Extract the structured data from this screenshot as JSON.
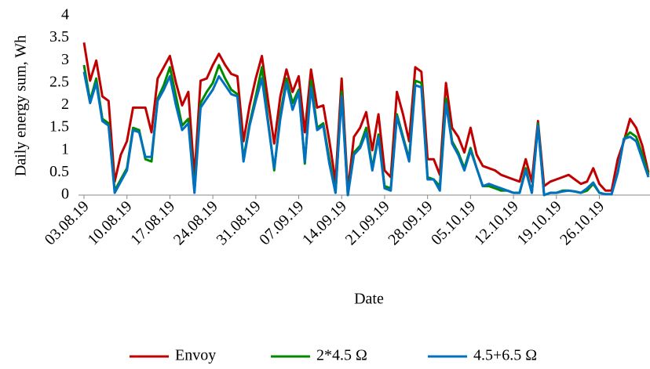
{
  "chart_data": {
    "type": "line",
    "y_label": "Daily energy sum, Wh",
    "x_label": "Date",
    "categories": [
      "03.08.19",
      null,
      null,
      null,
      null,
      null,
      null,
      "10.08.19",
      null,
      null,
      null,
      null,
      null,
      null,
      "17.08.19",
      null,
      null,
      null,
      null,
      null,
      null,
      "24.08.19",
      null,
      null,
      null,
      null,
      null,
      null,
      "31.08.19",
      null,
      null,
      null,
      null,
      null,
      null,
      "07.09.19",
      null,
      null,
      null,
      null,
      null,
      null,
      "14.09.19",
      null,
      null,
      null,
      null,
      null,
      null,
      "21.09.19",
      null,
      null,
      null,
      null,
      null,
      null,
      "28.09.19",
      null,
      null,
      null,
      null,
      null,
      null,
      "05.10.19",
      null,
      null,
      null,
      null,
      null,
      null,
      "12.10.19",
      null,
      null,
      null,
      null,
      null,
      null,
      "19.10.19",
      null,
      null,
      null,
      null,
      null,
      null,
      "26.10.19",
      null,
      null,
      null,
      null,
      null,
      null,
      null,
      null
    ],
    "series": [
      {
        "name": "Envoy",
        "color": "#c00000",
        "values": [
          3.4,
          2.55,
          3.0,
          2.2,
          2.1,
          0.3,
          0.9,
          1.2,
          1.95,
          1.95,
          1.95,
          1.4,
          2.6,
          2.85,
          3.1,
          2.5,
          2.0,
          2.3,
          0.4,
          2.55,
          2.6,
          2.9,
          3.15,
          2.9,
          2.7,
          2.65,
          1.2,
          2.0,
          2.6,
          3.1,
          2.1,
          1.15,
          2.2,
          2.8,
          2.3,
          2.65,
          1.4,
          2.8,
          1.95,
          2.0,
          1.2,
          0.3,
          2.6,
          0.1,
          1.3,
          1.5,
          1.85,
          1.0,
          1.8,
          0.55,
          0.4,
          2.3,
          1.8,
          1.2,
          2.85,
          2.75,
          0.8,
          0.8,
          0.45,
          2.5,
          1.5,
          1.3,
          0.95,
          1.5,
          0.9,
          0.65,
          0.6,
          0.55,
          0.45,
          0.4,
          0.35,
          0.3,
          0.8,
          0.3,
          1.65,
          0.2,
          0.3,
          0.35,
          0.4,
          0.45,
          0.35,
          0.25,
          0.3,
          0.6,
          0.25,
          0.1,
          0.1,
          0.8,
          1.2,
          1.7,
          1.5,
          1.1,
          0.5
        ]
      },
      {
        "name": "2*4.5 Ω",
        "color": "#008a00",
        "values": [
          2.9,
          2.1,
          2.6,
          1.7,
          1.6,
          0.1,
          0.35,
          0.6,
          1.5,
          1.45,
          0.8,
          0.75,
          2.15,
          2.45,
          2.85,
          2.2,
          1.55,
          1.7,
          0.1,
          2.05,
          2.3,
          2.5,
          2.9,
          2.6,
          2.35,
          2.25,
          0.8,
          1.6,
          2.2,
          2.85,
          1.65,
          0.55,
          1.8,
          2.6,
          2.05,
          2.35,
          0.7,
          2.55,
          1.5,
          1.6,
          0.8,
          0.05,
          2.3,
          0.0,
          0.95,
          1.1,
          1.5,
          0.6,
          1.35,
          0.2,
          0.15,
          1.8,
          1.3,
          0.8,
          2.55,
          2.5,
          0.4,
          0.35,
          0.2,
          2.15,
          1.2,
          0.95,
          0.6,
          1.05,
          0.6,
          0.2,
          0.2,
          0.15,
          0.1,
          0.1,
          0.05,
          0.05,
          0.6,
          0.05,
          1.6,
          0.0,
          0.05,
          0.05,
          0.1,
          0.1,
          0.08,
          0.05,
          0.1,
          0.25,
          0.05,
          0.02,
          0.02,
          0.5,
          1.25,
          1.4,
          1.3,
          0.9,
          0.45
        ]
      },
      {
        "name": "4.5+6.5 Ω",
        "color": "#0070c0",
        "values": [
          2.75,
          2.05,
          2.5,
          1.65,
          1.55,
          0.05,
          0.3,
          0.55,
          1.45,
          1.4,
          0.85,
          0.85,
          2.1,
          2.35,
          2.65,
          2.0,
          1.45,
          1.6,
          0.05,
          1.95,
          2.15,
          2.35,
          2.65,
          2.45,
          2.25,
          2.2,
          0.75,
          1.55,
          2.1,
          2.6,
          1.6,
          0.6,
          1.7,
          2.5,
          1.9,
          2.3,
          0.75,
          2.4,
          1.45,
          1.55,
          0.7,
          0.05,
          2.2,
          0.0,
          0.9,
          1.05,
          1.4,
          0.55,
          1.3,
          0.15,
          0.1,
          1.75,
          1.25,
          0.75,
          2.45,
          2.4,
          0.35,
          0.35,
          0.1,
          2.05,
          1.15,
          0.9,
          0.55,
          1.0,
          0.6,
          0.2,
          0.25,
          0.2,
          0.15,
          0.1,
          0.05,
          0.05,
          0.55,
          0.05,
          1.55,
          0.0,
          0.05,
          0.05,
          0.08,
          0.1,
          0.08,
          0.05,
          0.15,
          0.28,
          0.05,
          0.02,
          0.02,
          0.5,
          1.25,
          1.3,
          1.2,
          0.8,
          0.4
        ]
      }
    ],
    "ylim": [
      0,
      4
    ],
    "yticks": [
      0,
      0.5,
      1,
      1.5,
      2,
      2.5,
      3,
      3.5,
      4
    ],
    "grid": false
  }
}
